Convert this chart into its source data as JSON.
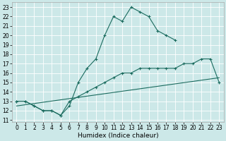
{
  "xlabel": "Humidex (Indice chaleur)",
  "bg_color": "#cce8e8",
  "grid_color": "#ffffff",
  "line_color": "#1a6b5e",
  "xlim": [
    -0.5,
    23.5
  ],
  "ylim": [
    10.8,
    23.5
  ],
  "yticks": [
    11,
    12,
    13,
    14,
    15,
    16,
    17,
    18,
    19,
    20,
    21,
    22,
    23
  ],
  "xticks": [
    0,
    1,
    2,
    3,
    4,
    5,
    6,
    7,
    8,
    9,
    10,
    11,
    12,
    13,
    14,
    15,
    16,
    17,
    18,
    19,
    20,
    21,
    22,
    23
  ],
  "curve1_x": [
    0,
    1,
    2,
    3,
    4,
    5,
    6,
    7,
    8,
    9,
    10,
    11,
    12,
    13,
    14,
    15,
    16,
    17,
    18
  ],
  "curve1_y": [
    13,
    13,
    12.5,
    12,
    12,
    11.5,
    12.5,
    15,
    16.5,
    17.5,
    20,
    22,
    21.5,
    23,
    22.5,
    22,
    20.5,
    20,
    19.5
  ],
  "curve2_x": [
    0,
    1,
    2,
    3,
    4,
    5,
    6,
    7,
    8,
    9,
    10,
    11,
    12,
    13,
    14,
    15,
    16,
    17,
    18,
    19,
    20,
    21,
    22,
    23
  ],
  "curve2_y": [
    13,
    13,
    12.5,
    12,
    12,
    11.5,
    13,
    13.5,
    14,
    14.5,
    15,
    15.5,
    16,
    16,
    16.5,
    16.5,
    16.5,
    16.5,
    16.5,
    17,
    17,
    17.5,
    17.5,
    15
  ],
  "curve3_x": [
    0,
    23
  ],
  "curve3_y": [
    12.5,
    15.5
  ],
  "tick_fontsize": 5.5,
  "xlabel_fontsize": 6.5
}
